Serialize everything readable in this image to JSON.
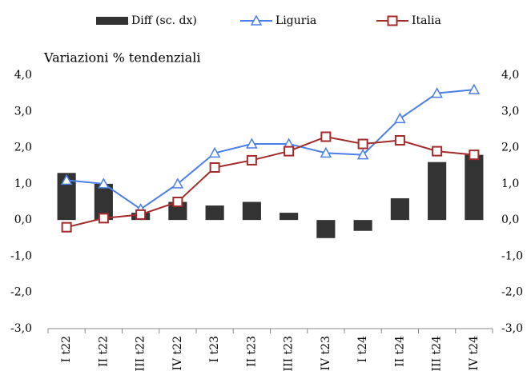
{
  "chart_data": {
    "type": "combo",
    "subtitle": "Variazioni % tendenziali",
    "categories": [
      "I t22",
      "II t22",
      "III t22",
      "IV t22",
      "I t23",
      "II t23",
      "III t23",
      "IV t23",
      "I t24",
      "II t24",
      "III t24",
      "IV t24"
    ],
    "series": [
      {
        "name": "Diff (sc. dx)",
        "type": "bar",
        "axis": "y2",
        "color": "#333333",
        "values": [
          1.3,
          1.0,
          0.2,
          0.5,
          0.4,
          0.5,
          0.2,
          -0.5,
          -0.3,
          0.6,
          1.6,
          1.8
        ]
      },
      {
        "name": "Liguria",
        "type": "line",
        "marker": "triangle",
        "color": "#4a7ee8",
        "values": [
          1.1,
          1.0,
          0.3,
          1.0,
          1.85,
          2.1,
          2.1,
          1.85,
          1.8,
          2.8,
          3.5,
          3.6
        ]
      },
      {
        "name": "Italia",
        "type": "line",
        "marker": "square",
        "color": "#a52a2a",
        "values": [
          -0.2,
          0.05,
          0.15,
          0.5,
          1.45,
          1.65,
          1.9,
          2.3,
          2.1,
          2.2,
          1.9,
          1.8
        ]
      }
    ],
    "ylim": [
      -3,
      4
    ],
    "yticks": [
      {
        "value": 4,
        "label": "4,0"
      },
      {
        "value": 3,
        "label": "3,0"
      },
      {
        "value": 2,
        "label": "2,0"
      },
      {
        "value": 1,
        "label": "1,0"
      },
      {
        "value": 0,
        "label": "0,0"
      },
      {
        "value": -1,
        "label": "-1,0"
      },
      {
        "value": -2,
        "label": "-2,0"
      },
      {
        "value": -3,
        "label": "-3,0"
      }
    ],
    "y2lim": [
      -3,
      4
    ],
    "y2ticks": [
      {
        "value": 4,
        "label": "4,0"
      },
      {
        "value": 3,
        "label": "3,0"
      },
      {
        "value": 2,
        "label": "2,0"
      },
      {
        "value": 1,
        "label": "1,0"
      },
      {
        "value": 0,
        "label": "0,0"
      },
      {
        "value": -1,
        "label": "-1,0"
      },
      {
        "value": -2,
        "label": "-2,0"
      },
      {
        "value": -3,
        "label": "-3,0"
      }
    ],
    "legend": "top",
    "grid": false
  }
}
